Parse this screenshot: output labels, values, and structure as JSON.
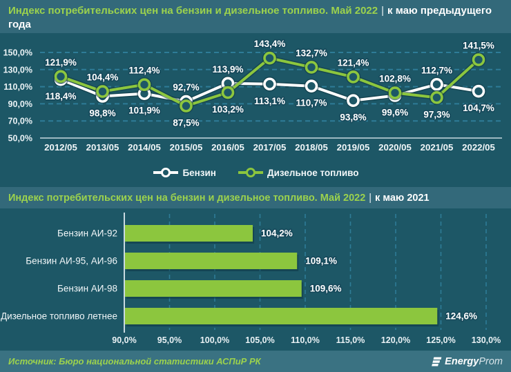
{
  "header1": {
    "title": "Индекс потребительских цен на бензин и дизельное топливо. Май 2022",
    "separator": "|",
    "subtitle": "к маю предыдущего года"
  },
  "header2": {
    "title": "Индекс потребительских цен на бензин и дизельное топливо. Май 2022",
    "separator": "|",
    "subtitle": "к маю 2021"
  },
  "footer": {
    "source": "Источник: Бюро национальной статистики АСПиР РК",
    "logo_bold": "Energy",
    "logo_light": "Prom"
  },
  "colors": {
    "background": "#1d5766",
    "band": "#33697a",
    "footer_band": "#3a7282",
    "green": "#8cc63e",
    "title_green": "#9cd24d",
    "white": "#ffffff",
    "gridline": "#2e7c97",
    "axis_line": "#c9dae1",
    "label_outline": "#16485a"
  },
  "chart_data": [
    {
      "type": "line",
      "title": "Индекс потребительских цен на бензин и дизельное топливо. Май 2022 | к маю предыдущего года",
      "categories": [
        "2012/05",
        "2013/05",
        "2014/05",
        "2015/05",
        "2016/05",
        "2017/05",
        "2018/05",
        "2019/05",
        "2020/05",
        "2021/05",
        "2022/05"
      ],
      "series": [
        {
          "name": "Бензин",
          "color": "#ffffff",
          "values": [
            118.4,
            98.8,
            101.9,
            92.7,
            113.9,
            113.1,
            110.7,
            93.8,
            99.6,
            112.7,
            104.7
          ],
          "labels": [
            "118,4%",
            "98,8%",
            "101,9%",
            "92,7%",
            "113,9%",
            "113,1%",
            "110,7%",
            "93,8%",
            "99,6%",
            "112,7%",
            "104,7%"
          ]
        },
        {
          "name": "Дизельное топливо",
          "color": "#8cc63e",
          "values": [
            121.9,
            104.4,
            112.4,
            87.5,
            103.2,
            143.4,
            132.7,
            121.4,
            102.8,
            97.3,
            141.5
          ],
          "labels": [
            "121,9%",
            "104,4%",
            "112,4%",
            "87,5%",
            "103,2%",
            "143,4%",
            "132,7%",
            "121,4%",
            "102,8%",
            "97,3%",
            "141,5%"
          ]
        }
      ],
      "y_tick_values": [
        150,
        130,
        110,
        90,
        70,
        50
      ],
      "y_ticks": [
        "150,0%",
        "130,0%",
        "110,0%",
        "90,0%",
        "70,0%",
        "50,0%"
      ],
      "ylim": [
        50,
        150
      ],
      "grid": true,
      "legend_position": "bottom"
    },
    {
      "type": "bar",
      "orientation": "horizontal",
      "title": "Индекс потребительских цен на бензин и дизельное топливо. Май 2022 | к маю 2021",
      "categories": [
        "Бензин АИ-92",
        "Бензин АИ-95, АИ-96",
        "Бензин АИ-98",
        "Дизельное топливо летнее"
      ],
      "values": [
        104.2,
        109.1,
        109.6,
        124.6
      ],
      "labels": [
        "104,2%",
        "109,1%",
        "109,6%",
        "124,6%"
      ],
      "x_tick_values": [
        90,
        95,
        100,
        105,
        110,
        115,
        120,
        125,
        130
      ],
      "x_ticks": [
        "90,0%",
        "95,0%",
        "100,0%",
        "105,0%",
        "110,0%",
        "115,0%",
        "120,0%",
        "125,0%",
        "130,0%"
      ],
      "xlim": [
        90,
        130
      ],
      "grid": true,
      "bar_color": "#8cc63e"
    }
  ]
}
